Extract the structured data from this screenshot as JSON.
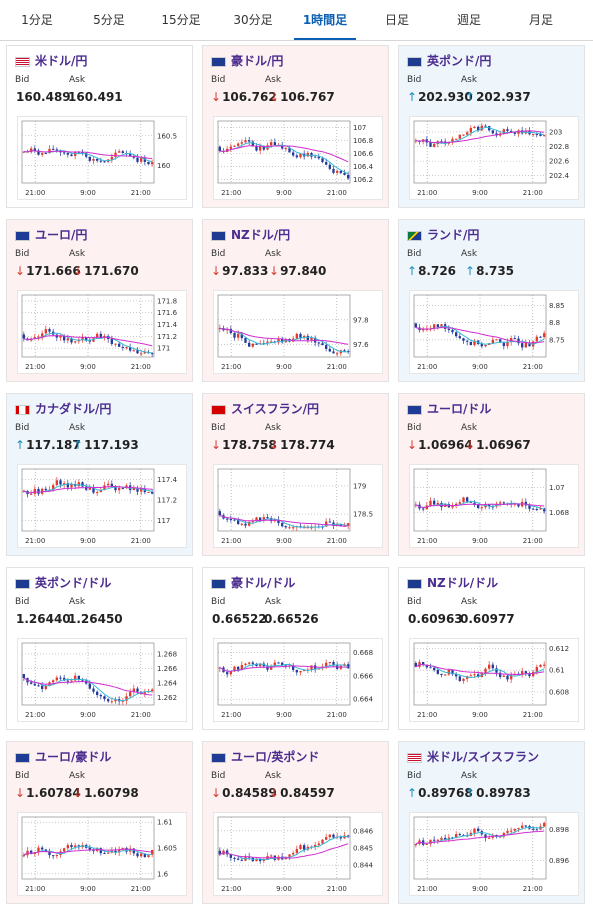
{
  "tabs": [
    {
      "label": "1分足",
      "active": false
    },
    {
      "label": "5分足",
      "active": false
    },
    {
      "label": "15分足",
      "active": false
    },
    {
      "label": "30分足",
      "active": false
    },
    {
      "label": "1時間足",
      "active": true
    },
    {
      "label": "日足",
      "active": false
    },
    {
      "label": "週足",
      "active": false
    },
    {
      "label": "月足",
      "active": false
    }
  ],
  "labels": {
    "bid": "Bid",
    "ask": "Ask"
  },
  "colors": {
    "up_arrow": "#1a8fc0",
    "down_arrow": "#d43a2f",
    "candle_up": "#e23b2e",
    "candle_down": "#243a9c",
    "ma_short": "#36b8d6",
    "ma_long": "#d12ed1",
    "pair_name": "#4b2c8f"
  },
  "cards": [
    {
      "pair": "米ドル/円",
      "flag": "us-jp-flag",
      "trend": "neutral",
      "bid": "160.489",
      "ask": "160.491",
      "bid_dir": "none",
      "ask_dir": "none",
      "chart_data": {
        "type": "candlestick",
        "x_ticks": [
          "21:00",
          "9:00",
          "21:00"
        ],
        "y_ticks": [
          "160.5",
          "160"
        ],
        "ylim": [
          159.7,
          160.75
        ]
      }
    },
    {
      "pair": "豪ドル/円",
      "flag": "au-jp-flag",
      "trend": "down",
      "bid": "106.762",
      "ask": "106.767",
      "bid_dir": "down",
      "ask_dir": "down",
      "chart_data": {
        "type": "candlestick",
        "x_ticks": [
          "21:00",
          "9:00",
          "21:00"
        ],
        "y_ticks": [
          "107",
          "106.8",
          "106.6",
          "106.4",
          "106.2"
        ],
        "ylim": [
          106.15,
          107.1
        ]
      }
    },
    {
      "pair": "英ポンド/円",
      "flag": "gb-jp-flag",
      "trend": "up",
      "bid": "202.930",
      "ask": "202.937",
      "bid_dir": "up",
      "ask_dir": "up",
      "chart_data": {
        "type": "candlestick",
        "x_ticks": [
          "21:00",
          "9:00",
          "21:00"
        ],
        "y_ticks": [
          "203",
          "202.8",
          "202.6",
          "202.4"
        ],
        "ylim": [
          202.3,
          203.15
        ]
      }
    },
    {
      "pair": "ユーロ/円",
      "flag": "eu-jp-flag",
      "trend": "down",
      "bid": "171.666",
      "ask": "171.670",
      "bid_dir": "down",
      "ask_dir": "down",
      "chart_data": {
        "type": "candlestick",
        "x_ticks": [
          "21:00",
          "9:00",
          "21:00"
        ],
        "y_ticks": [
          "171.8",
          "171.6",
          "171.4",
          "171.2",
          "171"
        ],
        "ylim": [
          170.85,
          171.9
        ]
      }
    },
    {
      "pair": "NZドル/円",
      "flag": "nz-jp-flag",
      "trend": "down",
      "bid": "97.833",
      "ask": "97.840",
      "bid_dir": "down",
      "ask_dir": "down",
      "chart_data": {
        "type": "candlestick",
        "x_ticks": [
          "21:00",
          "9:00",
          "21:00"
        ],
        "y_ticks": [
          "97.8",
          "97.6"
        ],
        "ylim": [
          97.5,
          98.0
        ]
      }
    },
    {
      "pair": "ランド/円",
      "flag": "za-jp-flag",
      "trend": "up",
      "bid": "8.726",
      "ask": "8.735",
      "bid_dir": "up",
      "ask_dir": "up",
      "chart_data": {
        "type": "candlestick",
        "x_ticks": [
          "21:00",
          "9:00",
          "21:00"
        ],
        "y_ticks": [
          "8.85",
          "8.8",
          "8.75"
        ],
        "ylim": [
          8.7,
          8.88
        ]
      }
    },
    {
      "pair": "カナダドル/円",
      "flag": "ca-jp-flag",
      "trend": "up",
      "bid": "117.187",
      "ask": "117.193",
      "bid_dir": "up",
      "ask_dir": "up",
      "chart_data": {
        "type": "candlestick",
        "x_ticks": [
          "21:00",
          "9:00",
          "21:00"
        ],
        "y_ticks": [
          "117.4",
          "117.2",
          "117"
        ],
        "ylim": [
          116.9,
          117.5
        ]
      }
    },
    {
      "pair": "スイスフラン/円",
      "flag": "ch-jp-flag",
      "trend": "down",
      "bid": "178.758",
      "ask": "178.774",
      "bid_dir": "down",
      "ask_dir": "down",
      "chart_data": {
        "type": "candlestick",
        "x_ticks": [
          "21:00",
          "9:00",
          "21:00"
        ],
        "y_ticks": [
          "179",
          "178.5"
        ],
        "ylim": [
          178.2,
          179.3
        ]
      }
    },
    {
      "pair": "ユーロ/ドル",
      "flag": "eu-us-flag",
      "trend": "down",
      "bid": "1.06964",
      "ask": "1.06967",
      "bid_dir": "down",
      "ask_dir": "down",
      "chart_data": {
        "type": "candlestick",
        "x_ticks": [
          "21:00",
          "9:00",
          "21:00"
        ],
        "y_ticks": [
          "1.07",
          "1.068"
        ],
        "ylim": [
          1.0665,
          1.0715
        ]
      }
    },
    {
      "pair": "英ポンド/ドル",
      "flag": "gb-us-flag",
      "trend": "neutral",
      "bid": "1.26440",
      "ask": "1.26450",
      "bid_dir": "none",
      "ask_dir": "none",
      "chart_data": {
        "type": "candlestick",
        "x_ticks": [
          "21:00",
          "9:00",
          "21:00"
        ],
        "y_ticks": [
          "1.268",
          "1.266",
          "1.264",
          "1.262"
        ],
        "ylim": [
          1.261,
          1.2695
        ]
      }
    },
    {
      "pair": "豪ドル/ドル",
      "flag": "au-us-flag",
      "trend": "neutral",
      "bid": "0.66522",
      "ask": "0.66526",
      "bid_dir": "none",
      "ask_dir": "none",
      "chart_data": {
        "type": "candlestick",
        "x_ticks": [
          "21:00",
          "9:00",
          "21:00"
        ],
        "y_ticks": [
          "0.668",
          "0.666",
          "0.664"
        ],
        "ylim": [
          0.6635,
          0.6688
        ]
      }
    },
    {
      "pair": "NZドル/ドル",
      "flag": "nz-us-flag",
      "trend": "neutral",
      "bid": "0.60963",
      "ask": "0.60977",
      "bid_dir": "none",
      "ask_dir": "none",
      "chart_data": {
        "type": "candlestick",
        "x_ticks": [
          "21:00",
          "9:00",
          "21:00"
        ],
        "y_ticks": [
          "0.612",
          "0.61",
          "0.608"
        ],
        "ylim": [
          0.6068,
          0.6125
        ]
      }
    },
    {
      "pair": "ユーロ/豪ドル",
      "flag": "eu-au-flag",
      "trend": "down",
      "bid": "1.60784",
      "ask": "1.60798",
      "bid_dir": "down",
      "ask_dir": "down",
      "chart_data": {
        "type": "candlestick",
        "x_ticks": [
          "21:00",
          "9:00",
          "21:00"
        ],
        "y_ticks": [
          "1.61",
          "1.605",
          "1.6"
        ],
        "ylim": [
          1.599,
          1.611
        ]
      }
    },
    {
      "pair": "ユーロ/英ポンド",
      "flag": "eu-gb-flag",
      "trend": "down",
      "bid": "0.84589",
      "ask": "0.84597",
      "bid_dir": "down",
      "ask_dir": "down",
      "chart_data": {
        "type": "candlestick",
        "x_ticks": [
          "21:00",
          "9:00",
          "21:00"
        ],
        "y_ticks": [
          "0.846",
          "0.845",
          "0.844"
        ],
        "ylim": [
          0.8432,
          0.8468
        ]
      }
    },
    {
      "pair": "米ドル/スイスフラン",
      "flag": "us-ch-flag",
      "trend": "up",
      "bid": "0.89768",
      "ask": "0.89783",
      "bid_dir": "up",
      "ask_dir": "up",
      "chart_data": {
        "type": "candlestick",
        "x_ticks": [
          "21:00",
          "9:00",
          "21:00"
        ],
        "y_ticks": [
          "0.898",
          "0.896"
        ],
        "ylim": [
          0.8948,
          0.8988
        ]
      }
    }
  ]
}
